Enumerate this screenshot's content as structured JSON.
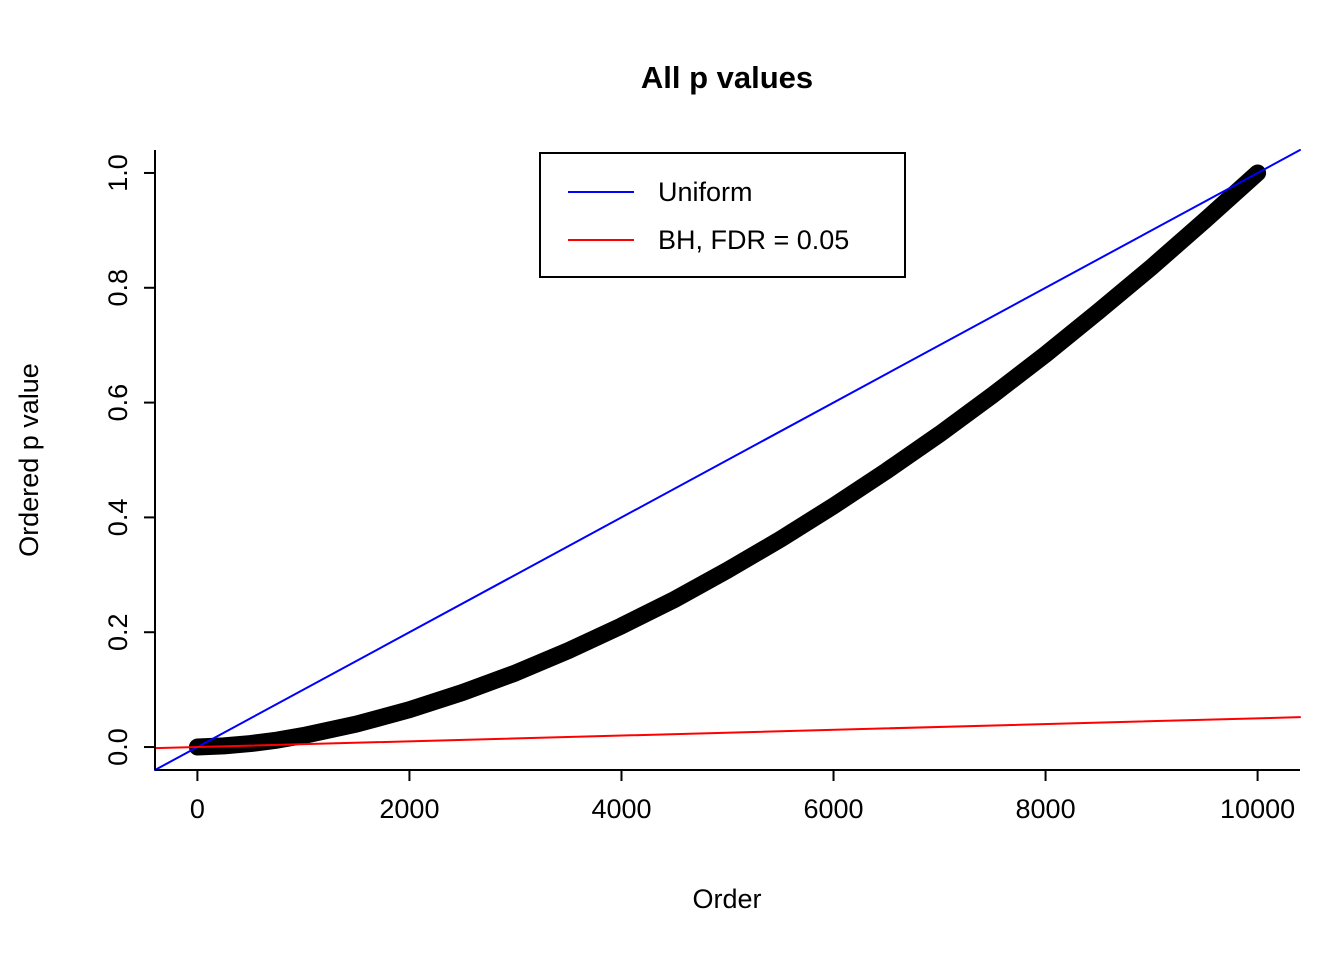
{
  "figure": {
    "background": "#FFFFFF",
    "axis_color": "#000000"
  },
  "chart_data": {
    "type": "scatter",
    "title": "All p values",
    "xlabel": "Order",
    "ylabel": "Ordered p value",
    "xlim": [
      -400,
      10400
    ],
    "ylim": [
      -0.04,
      1.04
    ],
    "grid": false,
    "x_ticks": [
      0,
      2000,
      4000,
      6000,
      8000,
      10000
    ],
    "x_tick_labels": [
      "0",
      "2000",
      "4000",
      "6000",
      "8000",
      "10000"
    ],
    "y_ticks": [
      0.0,
      0.2,
      0.4,
      0.6,
      0.8,
      1.0
    ],
    "y_tick_labels": [
      "0.0",
      "0.2",
      "0.4",
      "0.6",
      "0.8",
      "1.0"
    ],
    "legend_position": "top-center",
    "series": [
      {
        "name": "Ordered p values",
        "type": "scatter-band",
        "color": "#000000",
        "line_width": 17,
        "points": [
          [
            0,
            0.0
          ],
          [
            250,
            0.002
          ],
          [
            500,
            0.006
          ],
          [
            750,
            0.012
          ],
          [
            1000,
            0.02
          ],
          [
            1500,
            0.04
          ],
          [
            2000,
            0.065
          ],
          [
            2500,
            0.095
          ],
          [
            3000,
            0.129
          ],
          [
            3500,
            0.168
          ],
          [
            4000,
            0.211
          ],
          [
            4500,
            0.257
          ],
          [
            5000,
            0.308
          ],
          [
            5500,
            0.362
          ],
          [
            6000,
            0.42
          ],
          [
            6500,
            0.481
          ],
          [
            7000,
            0.545
          ],
          [
            7500,
            0.613
          ],
          [
            8000,
            0.684
          ],
          [
            8500,
            0.759
          ],
          [
            9000,
            0.836
          ],
          [
            9500,
            0.917
          ],
          [
            10000,
            1.0
          ]
        ]
      },
      {
        "name": "Uniform",
        "type": "line",
        "color": "#0000FF",
        "line_width": 2,
        "points": [
          [
            -400,
            -0.04
          ],
          [
            10400,
            1.04
          ]
        ]
      },
      {
        "name": "BH, FDR = 0.05",
        "type": "line",
        "color": "#FF0000",
        "line_width": 2,
        "points": [
          [
            -400,
            -0.002
          ],
          [
            10400,
            0.052
          ]
        ]
      }
    ],
    "legend": [
      {
        "label": "Uniform",
        "color": "#0000FF"
      },
      {
        "label": "BH, FDR = 0.05",
        "color": "#FF0000"
      }
    ]
  }
}
